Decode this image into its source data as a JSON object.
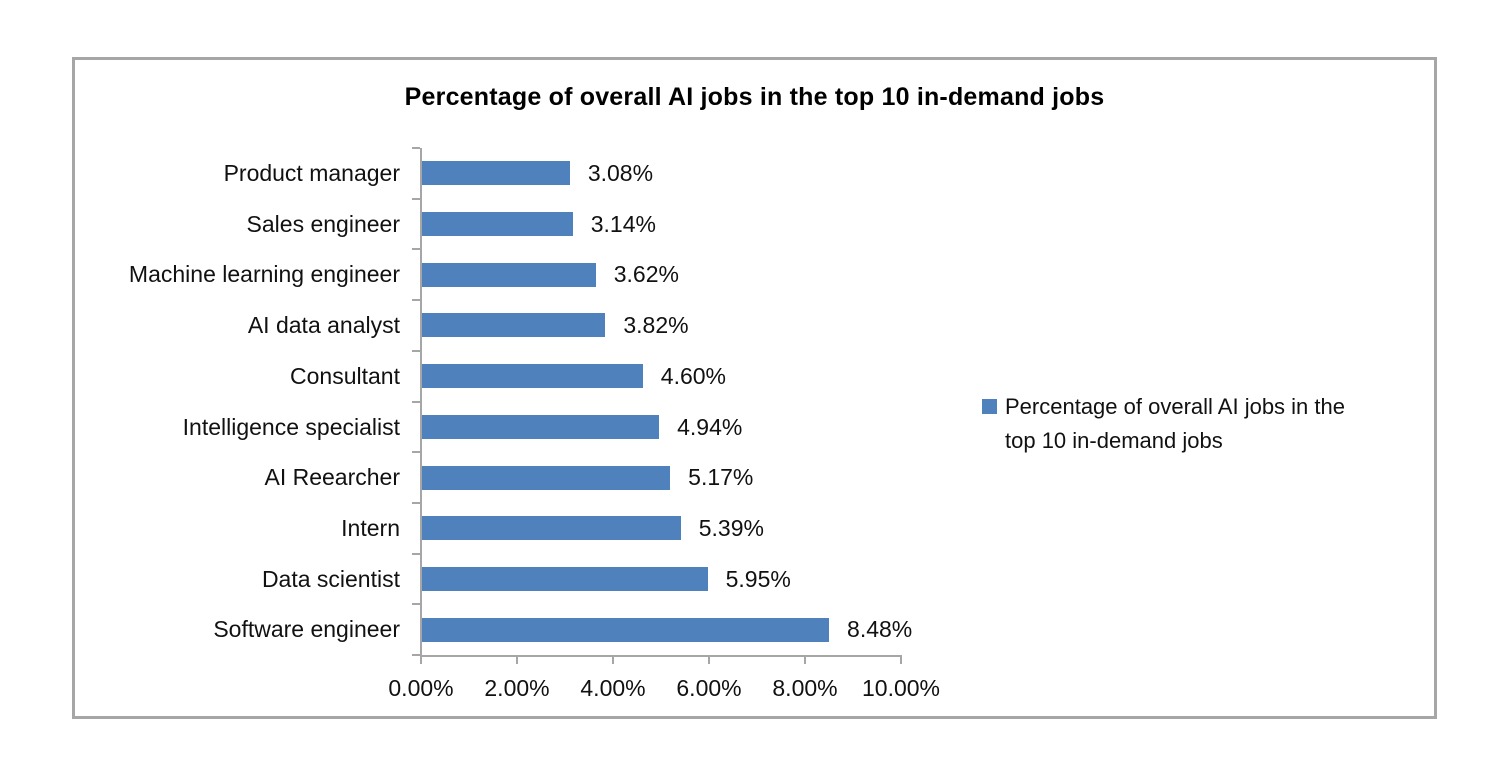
{
  "chart_data": {
    "type": "bar",
    "orientation": "horizontal",
    "title": "Percentage of overall AI jobs in the top 10 in-demand jobs",
    "categories": [
      "Product manager",
      "Sales engineer",
      "Machine learning engineer",
      "AI data analyst",
      "Consultant",
      "Intelligence specialist",
      "AI Reearcher",
      "Intern",
      "Data scientist",
      "Software engineer"
    ],
    "values": [
      3.08,
      3.14,
      3.62,
      3.82,
      4.6,
      4.94,
      5.17,
      5.39,
      5.95,
      8.48
    ],
    "data_labels": [
      "3.08%",
      "3.14%",
      "3.62%",
      "3.82%",
      "4.60%",
      "4.94%",
      "5.17%",
      "5.39%",
      "5.95%",
      "8.48%"
    ],
    "x_tick_labels": [
      "0.00%",
      "2.00%",
      "4.00%",
      "6.00%",
      "8.00%",
      "10.00%"
    ],
    "x_tick_values": [
      0,
      2,
      4,
      6,
      8,
      10
    ],
    "xlim": [
      0,
      10
    ],
    "xlabel": "",
    "ylabel": "",
    "grid": false,
    "legend_position": "right",
    "legend_entries": [
      "Percentage of overall AI jobs in the top 10 in-demand jobs"
    ],
    "colors": {
      "bar": "#4F81BD",
      "axis": "#A6A6A6",
      "frame_border": "#A6A6A6",
      "text": "#111111"
    }
  },
  "legend": {
    "line1": "Percentage of overall AI jobs in the",
    "line2": "top 10 in-demand jobs"
  }
}
